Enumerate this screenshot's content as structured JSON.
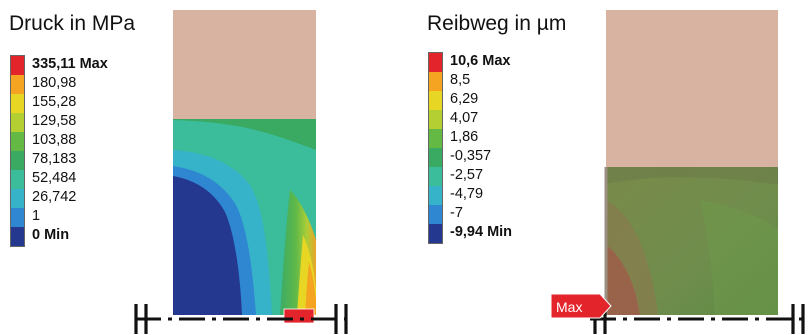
{
  "left_panel": {
    "title": "Druck in MPa",
    "legend": [
      {
        "label": "335,11 Max",
        "color": "#e3242b",
        "bold": true
      },
      {
        "label": "180,98",
        "color": "#f5a421",
        "bold": false
      },
      {
        "label": "155,28",
        "color": "#e8d624",
        "bold": false
      },
      {
        "label": "129,58",
        "color": "#b3cf31",
        "bold": false
      },
      {
        "label": "103,88",
        "color": "#63b944",
        "bold": false
      },
      {
        "label": "78,183",
        "color": "#3aaa63",
        "bold": false
      },
      {
        "label": "52,484",
        "color": "#3bbc9a",
        "bold": false
      },
      {
        "label": "26,742",
        "color": "#37b3c9",
        "bold": false
      },
      {
        "label": "1",
        "color": "#2f86d1",
        "bold": false
      },
      {
        "label": "0 Min",
        "color": "#24388f",
        "bold": true
      }
    ]
  },
  "right_panel": {
    "title": "Reibweg in µm",
    "legend": [
      {
        "label": "10,6 Max",
        "color": "#e3242b",
        "bold": true
      },
      {
        "label": "8,5",
        "color": "#f5a421",
        "bold": false
      },
      {
        "label": "6,29",
        "color": "#e8d624",
        "bold": false
      },
      {
        "label": "4,07",
        "color": "#b3cf31",
        "bold": false
      },
      {
        "label": "1,86",
        "color": "#63b944",
        "bold": false
      },
      {
        "label": "-0,357",
        "color": "#3aaa63",
        "bold": false
      },
      {
        "label": "-2,57",
        "color": "#3bbc9a",
        "bold": false
      },
      {
        "label": "-4,79",
        "color": "#37b3c9",
        "bold": false
      },
      {
        "label": "-7",
        "color": "#2f86d1",
        "bold": false
      },
      {
        "label": "-9,94 Min",
        "color": "#24388f",
        "bold": true
      }
    ],
    "max_tag": "Max"
  },
  "colors": {
    "upper_block": "#d8b3a2",
    "min_blue": "#24388f",
    "max_red": "#e3242b"
  }
}
